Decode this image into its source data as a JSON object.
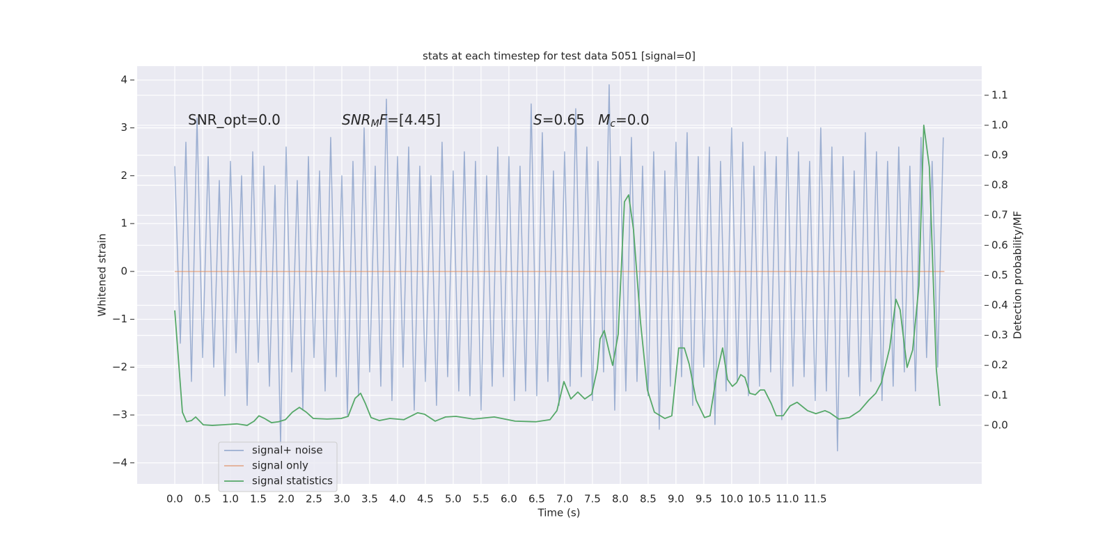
{
  "chart_data": {
    "type": "line",
    "title": "stats at each timestep for test data 5051 [signal=0]",
    "xlabel": "Time (s)",
    "ylabel": "Whitened strain",
    "y2label": "Detection probability/MF",
    "xlim": [
      -0.675,
      14.49
    ],
    "ylim": [
      -4.44,
      4.29
    ],
    "y2lim": [
      -0.195,
      1.197
    ],
    "xticks": [
      {
        "value": 0,
        "label": "0.0"
      },
      0.5,
      {
        "value": 1,
        "label": "1.0"
      },
      1.5,
      {
        "value": 2,
        "label": "2.0"
      },
      2.5,
      {
        "value": 3,
        "label": "3.0"
      },
      3.5,
      {
        "value": 4,
        "label": "4.0"
      },
      4.5,
      {
        "value": 5,
        "label": "5.0"
      },
      5.5,
      {
        "value": 6,
        "label": "6.0"
      },
      6.5,
      {
        "value": 7,
        "label": "7.0"
      },
      7.5,
      {
        "value": 8,
        "label": "8.0"
      },
      8.5,
      {
        "value": 9,
        "label": "9.0"
      },
      9.5,
      {
        "value": 10,
        "label": "10.0"
      },
      10.5,
      {
        "value": 11,
        "label": "11.0"
      },
      11.5
    ],
    "yticks": [
      {
        "value": -4,
        "label": "−4"
      },
      {
        "value": -3,
        "label": "−3"
      },
      {
        "value": -2,
        "label": "−2"
      },
      {
        "value": -1,
        "label": "−1"
      },
      0,
      1,
      2,
      3,
      4
    ],
    "y2ticks": [
      {
        "value": 0,
        "label": "0.0"
      },
      0.1,
      0.2,
      0.3,
      0.4,
      0.5,
      0.6,
      0.7,
      0.8,
      0.9,
      {
        "value": 1,
        "label": "1.0"
      },
      1.1
    ],
    "grid": true,
    "legend": "lower left",
    "annotations": [
      [
        "SNR_opt=0.0"
      ],
      [
        "SNR",
        "M",
        "F",
        "=[4.45]"
      ],
      [
        "S",
        "=0.65   ",
        "M",
        "c",
        "=0.0"
      ]
    ],
    "series": [
      {
        "name": "signal+ noise",
        "color": "#4c72b0",
        "x": [
          0,
          0.1,
          0.2,
          0.3,
          0.4,
          0.5,
          0.6,
          0.7,
          0.8,
          0.9,
          1,
          1.1,
          1.2,
          1.3,
          1.4,
          1.5,
          1.6,
          1.7,
          1.8,
          1.9,
          2,
          2.1,
          2.2,
          2.3,
          2.4,
          2.5,
          2.6,
          2.7,
          2.8,
          2.9,
          3,
          3.1,
          3.2,
          3.3,
          3.4,
          3.5,
          3.6,
          3.7,
          3.8,
          3.9,
          4,
          4.1,
          4.2,
          4.3,
          4.4,
          4.5,
          4.6,
          4.7,
          4.8,
          4.9,
          5,
          5.1,
          5.2,
          5.3,
          5.4,
          5.5,
          5.6,
          5.7,
          5.8,
          5.9,
          6,
          6.1,
          6.2,
          6.3,
          6.4,
          6.5,
          6.6,
          6.7,
          6.8,
          6.9,
          7,
          7.1,
          7.2,
          7.3,
          7.4,
          7.5,
          7.6,
          7.7,
          7.8,
          7.9,
          8,
          8.1,
          8.2,
          8.3,
          8.4,
          8.5,
          8.6,
          8.7,
          8.8,
          8.9,
          9,
          9.1,
          9.2,
          9.3,
          9.4,
          9.5,
          9.6,
          9.7,
          9.8,
          9.9,
          10,
          10.1,
          10.2,
          10.3,
          10.4,
          10.5,
          10.6,
          10.7,
          10.8,
          10.9,
          11,
          11.1,
          11.2,
          11.3,
          11.4,
          11.5,
          11.6,
          11.7,
          11.8,
          11.9,
          12,
          12.1,
          12.2,
          12.3,
          12.4,
          12.5,
          12.6,
          12.7,
          12.8,
          12.9,
          13,
          13.1,
          13.2,
          13.3,
          13.4,
          13.5,
          13.6,
          13.7,
          13.8
        ],
        "values": [
          2.2,
          -1.5,
          2.7,
          -2.3,
          3.2,
          -1.8,
          2.4,
          -2.0,
          1.9,
          -2.6,
          2.3,
          -1.7,
          2.0,
          -2.8,
          2.5,
          -1.9,
          2.2,
          -2.4,
          1.8,
          -3.6,
          2.6,
          -2.1,
          1.9,
          -2.9,
          2.4,
          -1.8,
          2.1,
          -2.5,
          2.8,
          -2.2,
          2.0,
          -3.0,
          2.3,
          -2.6,
          3.0,
          -2.1,
          2.2,
          -2.4,
          3.6,
          -2.7,
          2.4,
          -2.0,
          2.6,
          -2.9,
          2.2,
          -2.3,
          2.0,
          -2.8,
          2.7,
          -2.2,
          2.1,
          -2.5,
          2.5,
          -2.6,
          2.3,
          -2.9,
          2.0,
          -2.4,
          2.6,
          -2.2,
          2.4,
          -2.7,
          2.2,
          -2.5,
          3.5,
          -2.6,
          2.9,
          -2.3,
          2.1,
          -2.8,
          2.5,
          -2.4,
          3.4,
          -2.2,
          2.6,
          -2.7,
          2.3,
          -2.1,
          3.9,
          -2.9,
          2.4,
          -2.5,
          2.8,
          -2.3,
          2.2,
          -2.6,
          2.5,
          -3.3,
          2.1,
          -2.4,
          2.7,
          -2.2,
          2.9,
          -2.8,
          2.4,
          -2.0,
          2.6,
          -3.2,
          2.3,
          -2.5,
          3.0,
          -2.3,
          2.7,
          -2.6,
          2.2,
          -2.4,
          2.5,
          -2.1,
          2.4,
          -3.1,
          2.8,
          -2.4,
          2.5,
          -2.2,
          2.3,
          -2.7,
          3.0,
          -2.5,
          2.6,
          -3.75,
          2.4,
          -2.2,
          2.1,
          -2.6,
          2.9,
          -2.3,
          2.5,
          -2.7,
          2.3,
          -2.4,
          2.6,
          -2.1,
          2.2,
          -2.5,
          2.8,
          -1.8,
          2.3,
          -2.0,
          2.8
        ]
      },
      {
        "name": "signal only",
        "color": "#dd8452",
        "x": [
          0,
          13.82
        ],
        "values": [
          0,
          0
        ]
      },
      {
        "name": "signal statistics",
        "color": "#55a868",
        "axis": "y2",
        "x": [
          0,
          0.1375,
          0.2125,
          0.3,
          0.375,
          0.5125,
          0.675,
          0.8625,
          1.1125,
          1.3,
          1.425,
          1.5125,
          1.6125,
          1.7375,
          1.8625,
          1.9875,
          2.1125,
          2.2375,
          2.3625,
          2.4875,
          2.7375,
          2.9875,
          3.1125,
          3.2375,
          3.3375,
          3.425,
          3.525,
          3.675,
          3.8625,
          4.1125,
          4.3625,
          4.4875,
          4.675,
          4.8625,
          5.05,
          5.3625,
          5.7375,
          6.1125,
          6.4875,
          6.7375,
          6.8625,
          6.9875,
          7.1125,
          7.2375,
          7.3625,
          7.4875,
          7.5875,
          7.6375,
          7.7125,
          7.8,
          7.8625,
          7.9625,
          8.075,
          8.15,
          8.2375,
          8.3625,
          8.4875,
          8.6125,
          8.8,
          8.925,
          9.05,
          9.15,
          9.2375,
          9.3625,
          9.5125,
          9.6125,
          9.7375,
          9.8375,
          9.925,
          10.0125,
          10.0875,
          10.1625,
          10.2375,
          10.325,
          10.425,
          10.5125,
          10.5875,
          10.7125,
          10.8,
          10.925,
          11.05,
          11.175,
          11.3625,
          11.5125,
          11.675,
          11.7625,
          11.925,
          12.1125,
          12.3,
          12.4625,
          12.5875,
          12.6875,
          12.8375,
          12.95,
          13.025,
          13.15,
          13.25,
          13.3625,
          13.45,
          13.55,
          13.675,
          13.7375
        ],
        "values": [
          0.383,
          0.044,
          0.012,
          0.016,
          0.028,
          0.002,
          0,
          0.002,
          0.005,
          0,
          0.014,
          0.032,
          0.023,
          0.009,
          0.012,
          0.019,
          0.044,
          0.06,
          0.044,
          0.023,
          0.021,
          0.023,
          0.03,
          0.09,
          0.107,
          0.072,
          0.026,
          0.016,
          0.023,
          0.019,
          0.042,
          0.037,
          0.014,
          0.028,
          0.03,
          0.021,
          0.028,
          0.014,
          0.012,
          0.019,
          0.049,
          0.146,
          0.088,
          0.111,
          0.088,
          0.104,
          0.188,
          0.288,
          0.316,
          0.246,
          0.2,
          0.304,
          0.745,
          0.768,
          0.652,
          0.346,
          0.118,
          0.044,
          0.023,
          0.032,
          0.258,
          0.258,
          0.204,
          0.084,
          0.026,
          0.032,
          0.176,
          0.258,
          0.153,
          0.13,
          0.142,
          0.169,
          0.16,
          0.107,
          0.102,
          0.118,
          0.118,
          0.072,
          0.032,
          0.032,
          0.065,
          0.077,
          0.049,
          0.039,
          0.049,
          0.042,
          0.021,
          0.026,
          0.049,
          0.084,
          0.107,
          0.142,
          0.258,
          0.42,
          0.385,
          0.193,
          0.251,
          0.466,
          1.0,
          0.861,
          0.188,
          0.065
        ]
      }
    ]
  }
}
